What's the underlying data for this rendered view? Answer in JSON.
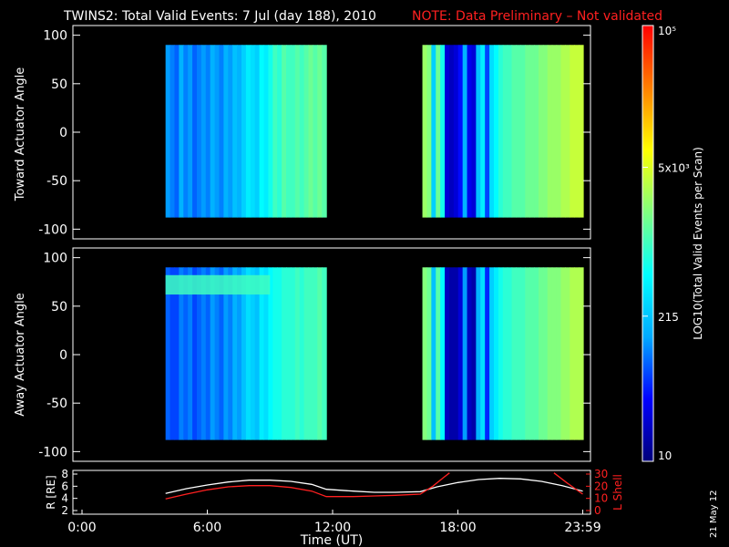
{
  "header": {
    "title": "TWINS2: Total Valid Events:  7 Jul (day 188), 2010",
    "note": "NOTE: Data Preliminary – Not validated",
    "note_color": "#ff2020"
  },
  "footer": {
    "date_stamp": "21 May 12"
  },
  "colorbar": {
    "label": "LOG10(Total Valid Events per Scan)",
    "ticks": [
      {
        "label": "10",
        "value": 10
      },
      {
        "label": "215",
        "value": 215
      },
      {
        "label": "5x10^3",
        "value": 5000
      },
      {
        "label": "10^5",
        "value": 100000
      }
    ],
    "range": [
      10,
      100000
    ],
    "scale": "log",
    "colors": [
      "#00007a",
      "#0000ff",
      "#00aaff",
      "#00ffff",
      "#80ff80",
      "#ffff00",
      "#ff8000",
      "#ff0000"
    ]
  },
  "chart_data": [
    {
      "type": "heatmap",
      "panel": "top",
      "ylabel": "Toward Actuator Angle",
      "ylim": [
        -110,
        110
      ],
      "yticks": [
        100,
        50,
        0,
        -50,
        -100
      ],
      "xlim_hours": [
        0,
        24
      ],
      "data_y_range": [
        -88,
        90
      ],
      "blocks": [
        {
          "x_start_hours": 4.0,
          "x_end_hours": 11.7,
          "columns_log10": [
            2.1,
            2.0,
            1.9,
            2.2,
            2.0,
            2.1,
            1.9,
            2.0,
            2.1,
            2.0,
            2.2,
            2.1,
            2.0,
            2.2,
            2.1,
            2.3,
            2.2,
            2.4,
            2.6,
            2.5,
            2.4,
            2.7,
            2.6,
            2.8,
            3.0,
            2.9,
            3.1,
            3.0,
            3.0,
            3.1,
            3.0,
            3.1,
            3.2,
            3.1,
            3.2,
            3.1
          ]
        },
        {
          "x_start_hours": 16.3,
          "x_end_hours": 24.0,
          "columns_log10": [
            3.4,
            3.3,
            2.4,
            3.2,
            2.8,
            1.4,
            1.3,
            1.4,
            1.6,
            2.2,
            1.5,
            1.4,
            2.3,
            2.6,
            1.8,
            2.5,
            2.7,
            2.9,
            3.0,
            3.0,
            3.1,
            3.1,
            3.1,
            3.2,
            3.2,
            3.2,
            3.3,
            3.3,
            3.4,
            3.4,
            3.4,
            3.5,
            3.5,
            3.6,
            3.6,
            3.6
          ]
        }
      ]
    },
    {
      "type": "heatmap",
      "panel": "bottom",
      "ylabel": "Away Actuator Angle",
      "ylim": [
        -110,
        110
      ],
      "yticks": [
        100,
        50,
        0,
        -50,
        -100
      ],
      "xlim_hours": [
        0,
        24
      ],
      "data_y_range": [
        -88,
        90
      ],
      "blocks": [
        {
          "x_start_hours": 4.0,
          "x_end_hours": 11.7,
          "columns_log10": [
            1.9,
            1.8,
            1.8,
            2.0,
            1.9,
            2.0,
            1.8,
            1.9,
            2.0,
            1.9,
            2.1,
            2.0,
            1.9,
            2.1,
            2.0,
            2.2,
            2.1,
            2.3,
            2.5,
            2.4,
            2.3,
            2.6,
            2.5,
            2.7,
            2.8,
            2.8,
            2.9,
            2.9,
            2.9,
            3.0,
            2.9,
            3.0,
            3.0,
            3.0,
            3.1,
            3.0
          ],
          "feature": {
            "y_low": 62,
            "y_high": 82,
            "x_start_hours": 4.0,
            "x_end_hours": 9.0,
            "log10": 3.0
          }
        },
        {
          "x_start_hours": 16.3,
          "x_end_hours": 24.0,
          "columns_log10": [
            3.3,
            3.2,
            2.3,
            3.1,
            2.7,
            1.3,
            1.2,
            1.2,
            1.4,
            2.1,
            1.3,
            1.2,
            2.2,
            2.5,
            1.7,
            2.4,
            2.6,
            2.8,
            2.9,
            2.9,
            3.0,
            3.0,
            3.0,
            3.1,
            3.1,
            3.1,
            3.2,
            3.2,
            3.3,
            3.3,
            3.3,
            3.4,
            3.4,
            3.5,
            3.5,
            3.5
          ]
        }
      ]
    },
    {
      "type": "line",
      "panel": "orbit",
      "xlabel": "Time (UT)",
      "xticks": [
        {
          "label": "0:00",
          "hours": 0
        },
        {
          "label": "6:00",
          "hours": 6
        },
        {
          "label": "12:00",
          "hours": 12
        },
        {
          "label": "18:00",
          "hours": 18
        },
        {
          "label": "23:59",
          "hours": 23.98
        }
      ],
      "left_axis": {
        "label": "R [RE]",
        "ylim": [
          2,
          8
        ],
        "ticks": [
          2,
          4,
          6,
          8
        ]
      },
      "right_axis": {
        "label": "L Shell",
        "ylim": [
          0,
          30
        ],
        "ticks": [
          0,
          10,
          20,
          30
        ],
        "color": "#ff2020"
      },
      "series": [
        {
          "axis": "left",
          "color": "#ffffff",
          "x": [
            4.0,
            5.0,
            6.0,
            7.0,
            8.0,
            9.0,
            10.0,
            11.0,
            11.7,
            13.0,
            14.0,
            15.0,
            16.2,
            17.0,
            18.0,
            19.0,
            20.0,
            21.0,
            22.0,
            23.0,
            23.98
          ],
          "y": [
            4.8,
            5.6,
            6.2,
            6.7,
            7.0,
            7.0,
            6.8,
            6.3,
            5.5,
            5.2,
            5.0,
            5.0,
            5.1,
            5.9,
            6.6,
            7.1,
            7.3,
            7.2,
            6.8,
            6.1,
            5.2
          ]
        },
        {
          "axis": "right",
          "color": "#ff2020",
          "x": [
            4.0,
            5.0,
            6.0,
            7.0,
            8.0,
            9.0,
            10.0,
            11.0,
            11.7,
            13.0,
            14.0,
            15.0,
            16.2,
            16.8,
            17.3,
            17.6
          ],
          "y": [
            9.5,
            13.5,
            17.0,
            19.5,
            20.5,
            20.5,
            19.0,
            16.0,
            11.5,
            11.5,
            12.0,
            12.5,
            13.5,
            20.0,
            27.0,
            31.0
          ]
        },
        {
          "axis": "right",
          "color": "#ff2020",
          "x": [
            22.6,
            23.2,
            23.98
          ],
          "y": [
            31.0,
            23.0,
            13.5
          ]
        }
      ]
    }
  ]
}
